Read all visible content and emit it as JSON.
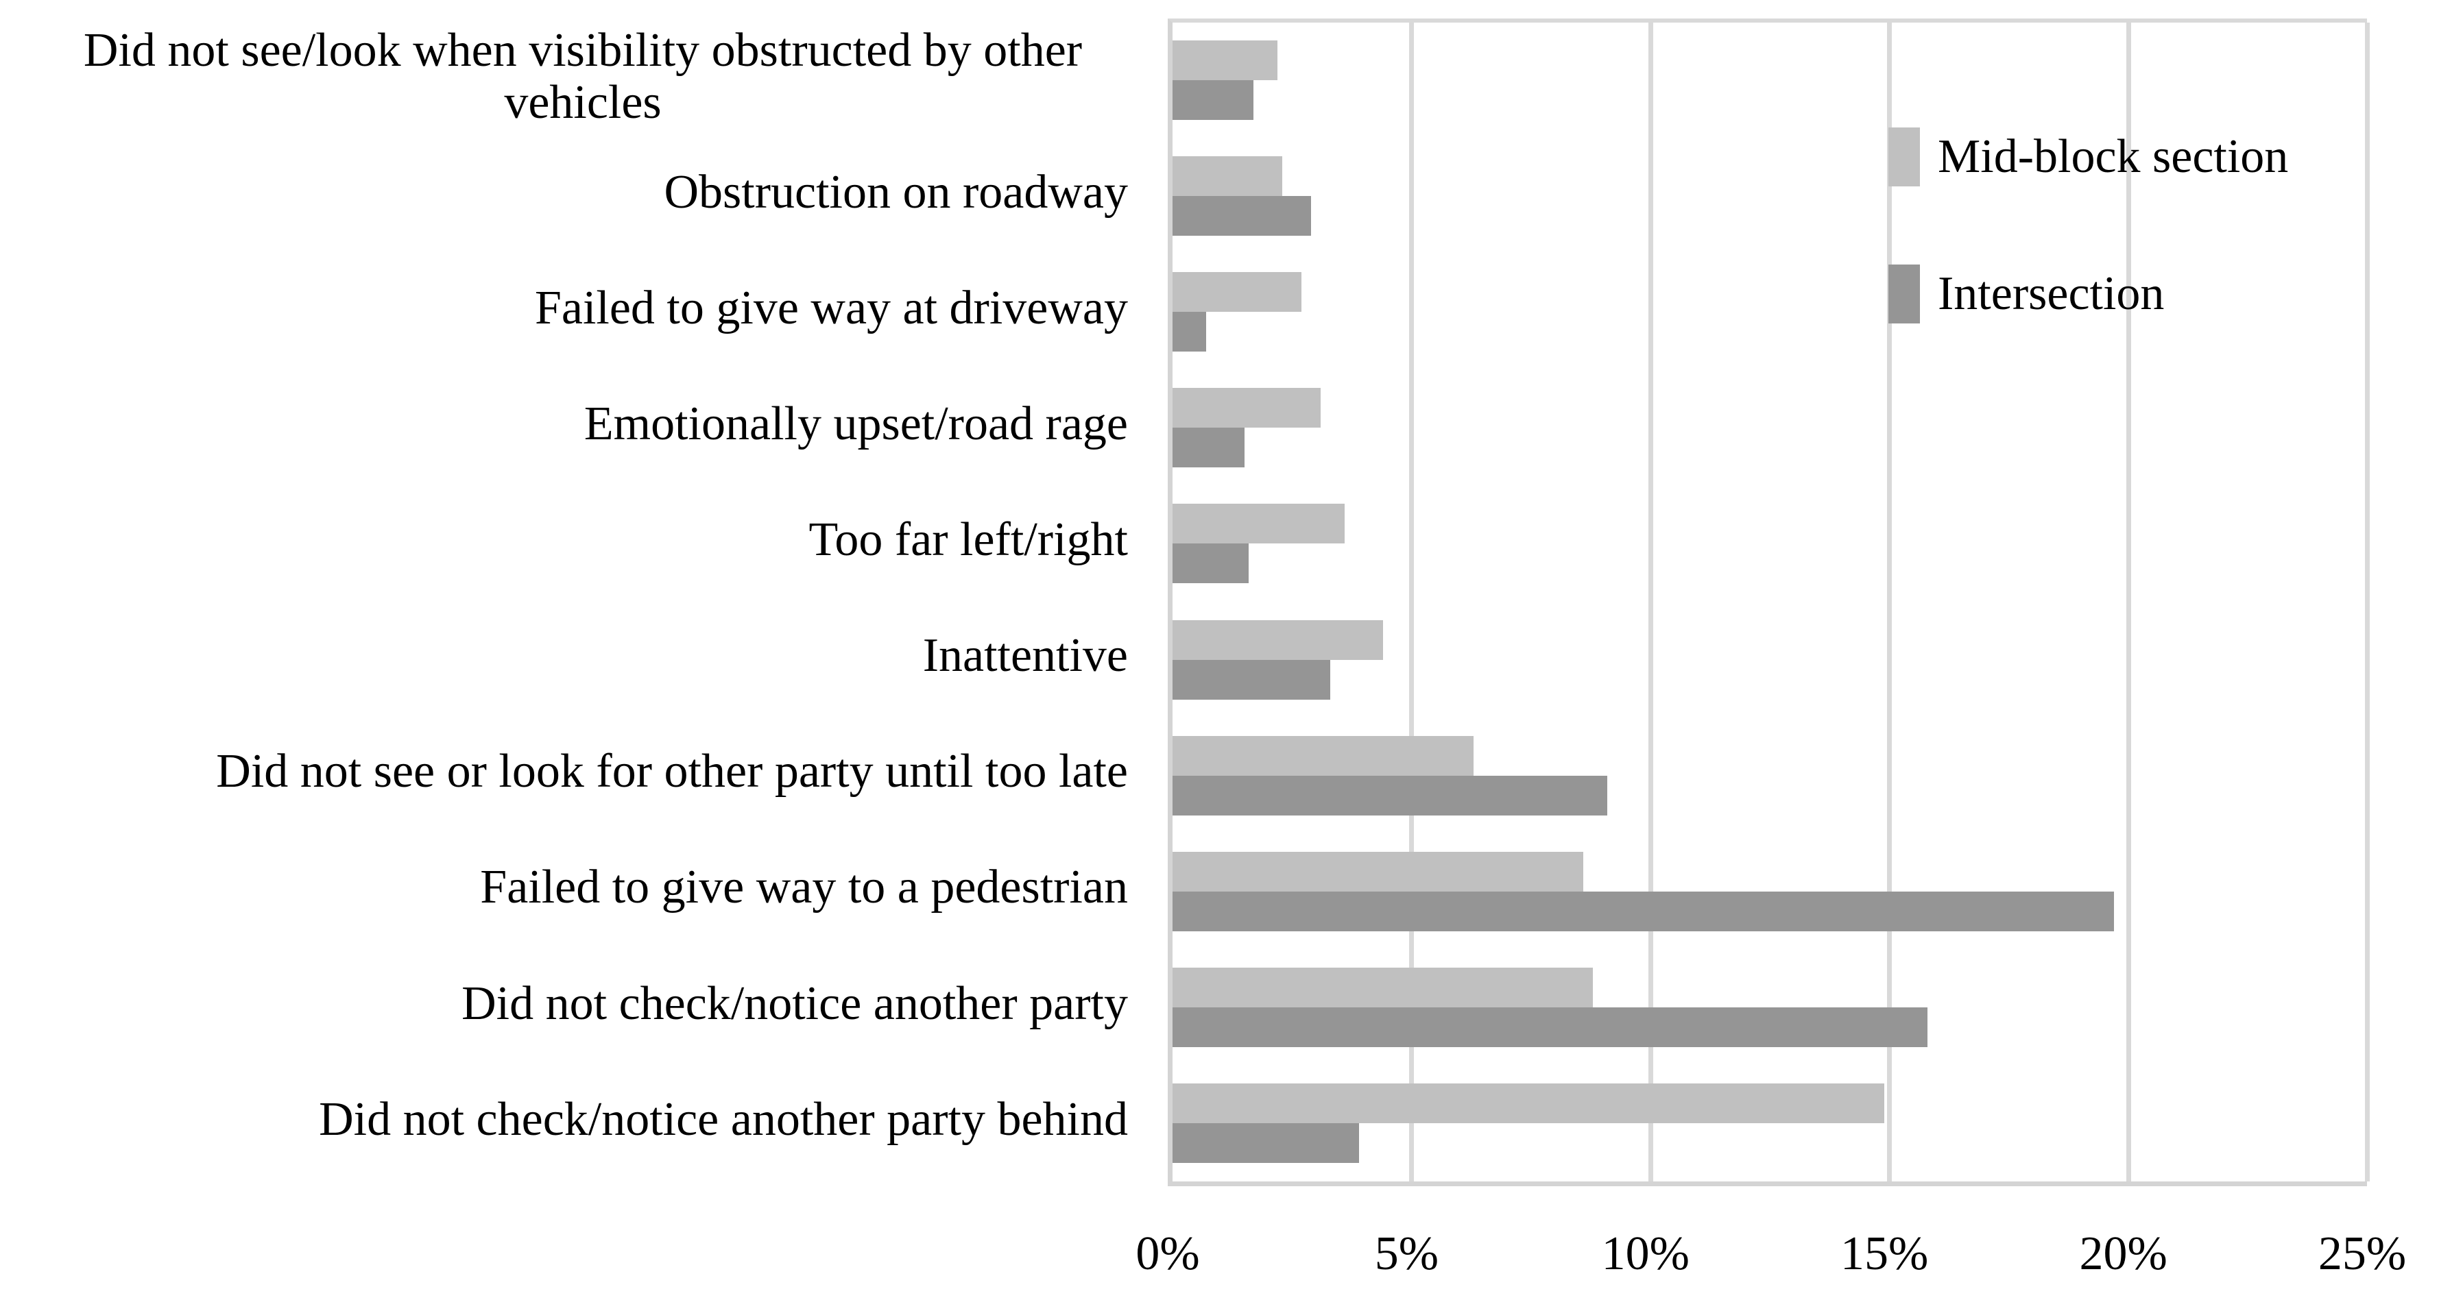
{
  "chart_data": {
    "type": "bar",
    "orientation": "horizontal",
    "title": "",
    "xlabel": "",
    "ylabel": "",
    "categories": [
      "Did not see/look when visibility obstructed by other vehicles",
      "Obstruction on roadway",
      "Failed to give way at driveway",
      "Emotionally upset/road rage",
      "Too far left/right",
      "Inattentive",
      "Did not see or look for other party until too late",
      "Failed to give way to a pedestrian",
      "Did not check/notice another party",
      "Did not check/notice another party behind"
    ],
    "series": [
      {
        "name": "Mid-block section",
        "color": "#c0c0c0",
        "values": [
          2.2,
          2.3,
          2.7,
          3.1,
          3.6,
          4.4,
          6.3,
          8.6,
          8.8,
          14.9
        ]
      },
      {
        "name": "Intersection",
        "color": "#959595",
        "values": [
          1.7,
          2.9,
          0.7,
          1.5,
          1.6,
          3.3,
          9.1,
          19.7,
          15.8,
          3.9
        ]
      }
    ],
    "value_unit": "%",
    "x_axis": {
      "min": 0,
      "max": 25,
      "step": 5,
      "tick_labels": [
        "0%",
        "5%",
        "10%",
        "15%",
        "20%",
        "25%"
      ]
    },
    "grid": true,
    "gridline_color": "#d9d9d9",
    "legend_position": "top-right"
  }
}
